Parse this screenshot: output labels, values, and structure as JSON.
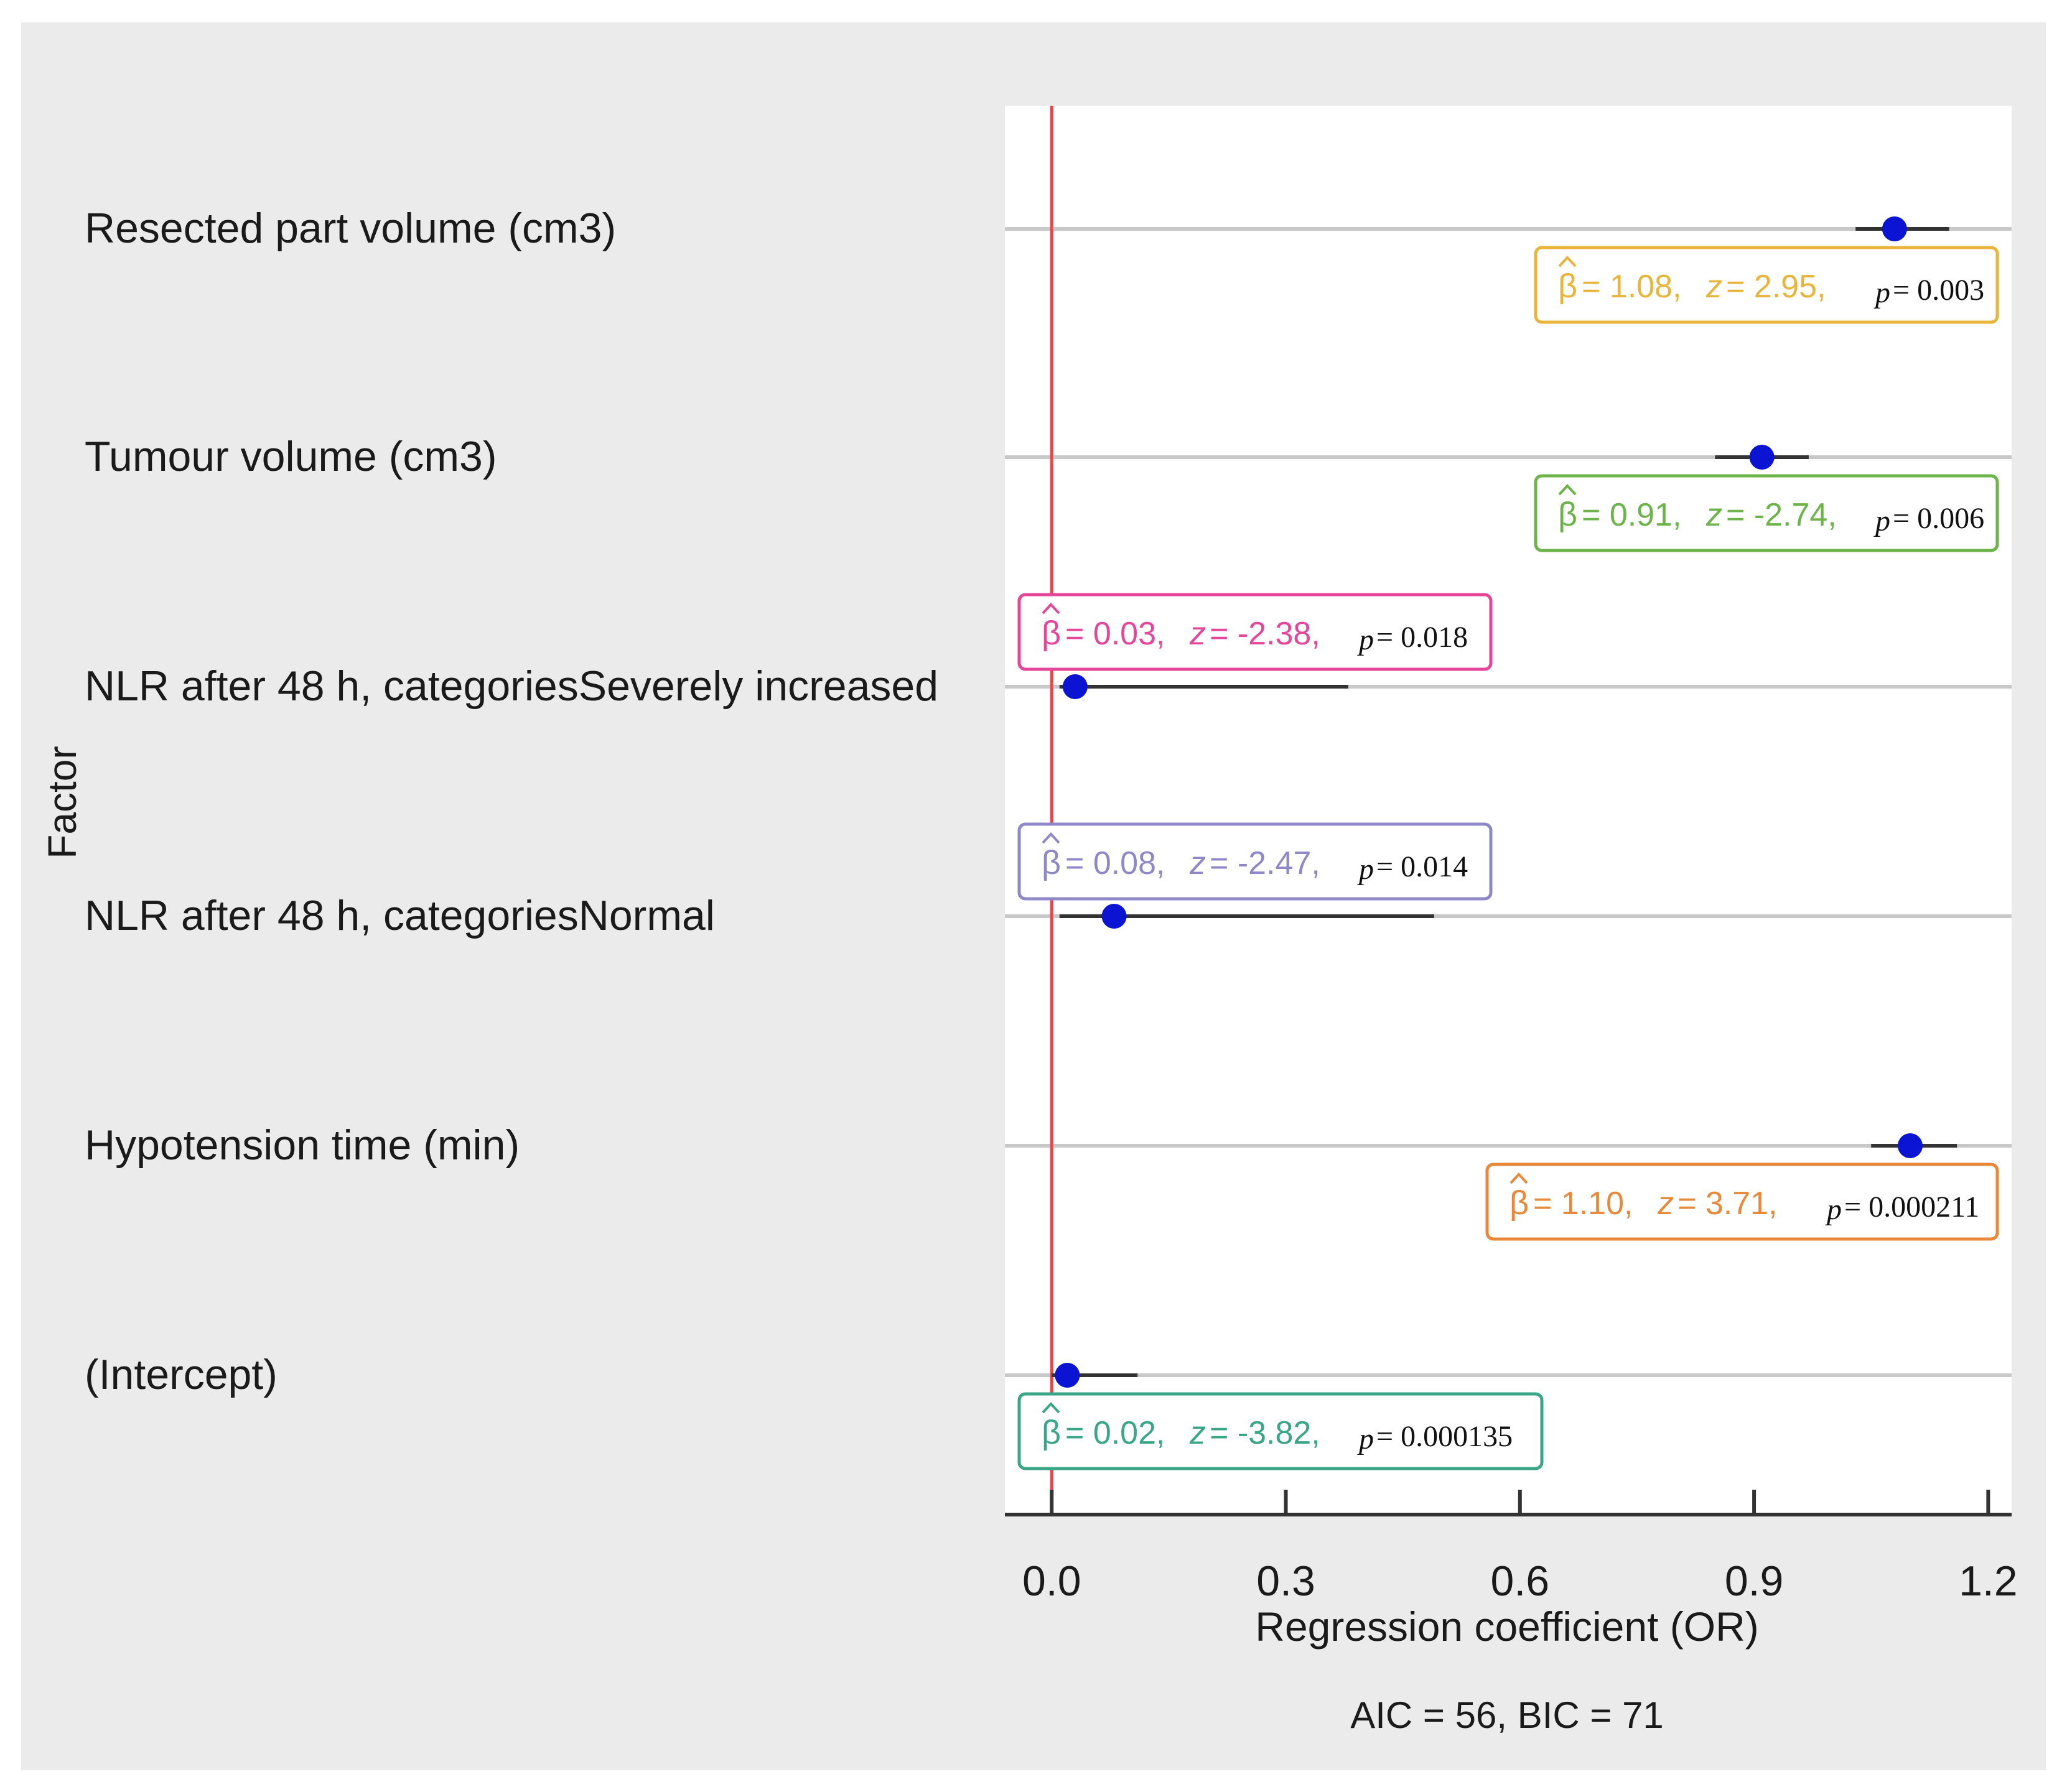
{
  "chart_data": {
    "type": "forest",
    "ylabel": "Factor",
    "xlabel": "Regression coefficient (OR)",
    "footnote": "AIC = 56, BIC = 71",
    "xlim": [
      -0.06,
      1.23
    ],
    "xticks": [
      0.0,
      0.3,
      0.6,
      0.9,
      1.2
    ],
    "xtick_labels": [
      "0.0",
      "0.3",
      "0.6",
      "0.9",
      "1.2"
    ],
    "reference_line": 0.0,
    "colors": {
      "panel_bg": "#ebebeb",
      "plot_bg": "#ffffff",
      "grid": "#c8c8c8",
      "reference": "#e8474a",
      "point": "#0a14d2",
      "ci": "#333333",
      "text": "#1a1a1a"
    },
    "factors": [
      {
        "label": "Resected part volume (cm3)",
        "estimate": 1.08,
        "ci_low": 1.03,
        "ci_high": 1.15,
        "beta": "1.08",
        "z": "2.95",
        "p": "0.003",
        "color": "#e8b53a",
        "box_side": "right"
      },
      {
        "label": "Tumour volume (cm3)",
        "estimate": 0.91,
        "ci_low": 0.85,
        "ci_high": 0.97,
        "beta": "0.91",
        "z": "-2.74",
        "p": "0.006",
        "color": "#6cb44a",
        "box_side": "right"
      },
      {
        "label": "NLR after 48 h, categoriesSeverely increased",
        "estimate": 0.03,
        "ci_low": 0.01,
        "ci_high": 0.38,
        "beta": "0.03",
        "z": "-2.38",
        "p": "0.018",
        "color": "#e5469a",
        "box_side": "left"
      },
      {
        "label": "NLR after 48 h, categoriesNormal",
        "estimate": 0.08,
        "ci_low": 0.01,
        "ci_high": 0.49,
        "beta": "0.08",
        "z": "-2.47",
        "p": "0.014",
        "color": "#8f88c8",
        "box_side": "left"
      },
      {
        "label": "Hypotension time (min)",
        "estimate": 1.1,
        "ci_low": 1.05,
        "ci_high": 1.16,
        "beta": "1.10",
        "z": "3.71",
        "p": "0.000211",
        "color": "#e8893a",
        "box_side": "right"
      },
      {
        "label": "(Intercept)",
        "estimate": 0.02,
        "ci_low": 0.0,
        "ci_high": 0.11,
        "beta": "0.02",
        "z": "-3.82",
        "p": "0.000135",
        "color": "#3aa688",
        "box_side": "left"
      }
    ],
    "annotation_symbols": {
      "beta": "β",
      "z": "z",
      "p": "p",
      "sep": ","
    }
  }
}
